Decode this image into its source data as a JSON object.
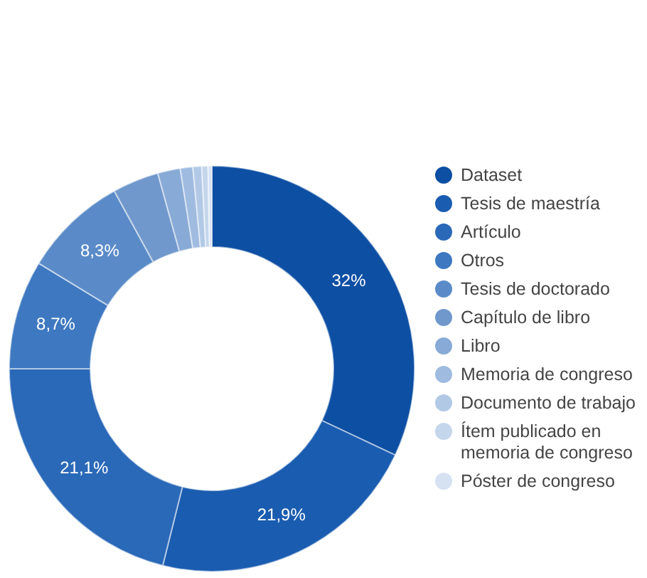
{
  "chart_data": {
    "type": "donut",
    "categories": [
      "Dataset",
      "Tesis de maestría",
      "Artículo",
      "Otros",
      "Tesis de doctorado",
      "Capítulo de libro",
      "Libro",
      "Memoria de congreso",
      "Documento de trabajo",
      "Ítem publicado en memoria de congreso",
      "Póster de congreso"
    ],
    "values": [
      32,
      21.9,
      21.1,
      8.7,
      8.3,
      3.7,
      1.8,
      1.0,
      0.7,
      0.5,
      0.3
    ],
    "value_labels": [
      "32%",
      "21,9%",
      "21,1%",
      "8,7%",
      "8,3%",
      null,
      null,
      null,
      null,
      null,
      null
    ],
    "colors": [
      "#0d4fa3",
      "#1a5cb0",
      "#2a68b8",
      "#3e78c0",
      "#5a8bc8",
      "#7098cc",
      "#88aad6",
      "#9fbbe0",
      "#b2c9e6",
      "#c4d6ec",
      "#d6e2f2"
    ],
    "legend": "right"
  }
}
